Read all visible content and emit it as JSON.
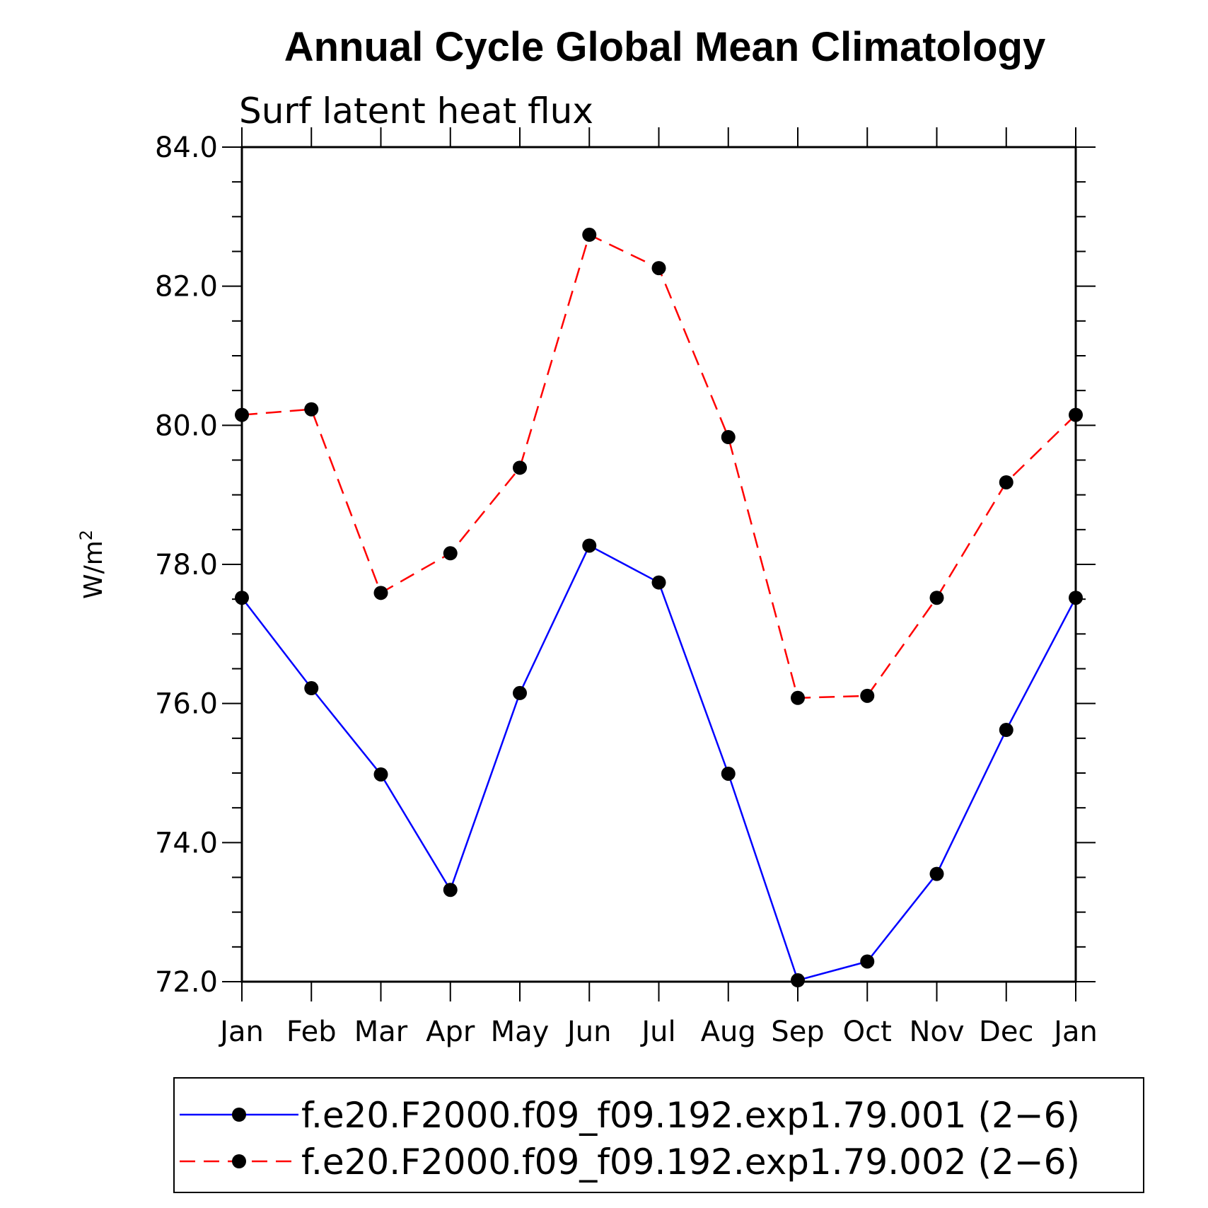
{
  "chart_data": {
    "type": "line",
    "title": "Annual Cycle Global Mean Climatology",
    "subtitle": "Surf latent heat flux",
    "ylabel_main": "W/m",
    "ylabel_sup": "2",
    "ylim": [
      72,
      84
    ],
    "y_ticks": [
      "72.0",
      "74.0",
      "76.0",
      "78.0",
      "80.0",
      "82.0",
      "84.0"
    ],
    "categories": [
      "Jan",
      "Feb",
      "Mar",
      "Apr",
      "May",
      "Jun",
      "Jul",
      "Aug",
      "Sep",
      "Oct",
      "Nov",
      "Dec",
      "Jan"
    ],
    "series": [
      {
        "name": "f.e20.F2000.f09_f09.192.exp1.79.001 (2−6)",
        "color": "#0000ff",
        "dash": "solid",
        "values": [
          77.52,
          76.22,
          74.98,
          73.32,
          76.15,
          78.27,
          77.74,
          74.99,
          72.02,
          72.29,
          73.55,
          75.62,
          77.52
        ]
      },
      {
        "name": "f.e20.F2000.f09_f09.192.exp1.79.002 (2−6)",
        "color": "#ff0000",
        "dash": "dashed",
        "values": [
          80.15,
          80.23,
          77.59,
          78.16,
          79.39,
          82.74,
          82.26,
          79.83,
          76.08,
          76.11,
          77.52,
          79.18,
          80.15
        ]
      }
    ],
    "grid": false,
    "legend": "bottom"
  }
}
